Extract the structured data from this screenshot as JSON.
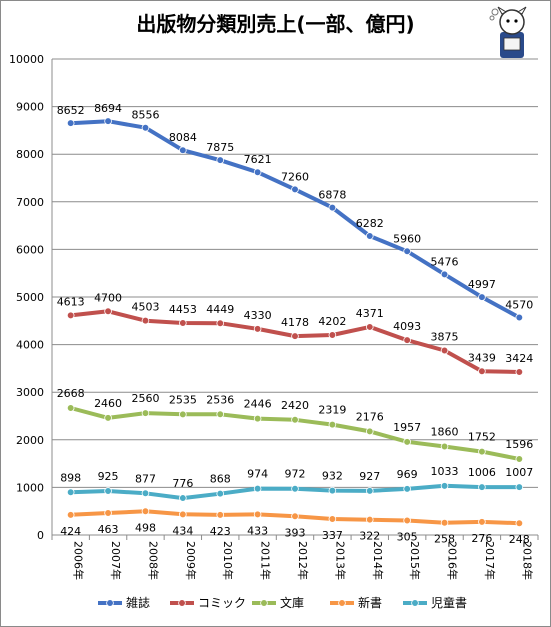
{
  "chart_data": {
    "type": "line",
    "title": "出版物分類別売上(一部、億円)",
    "xlabel": "",
    "ylabel": "",
    "categories": [
      "2006年",
      "2007年",
      "2008年",
      "2009年",
      "2010年",
      "2011年",
      "2012年",
      "2013年",
      "2014年",
      "2015年",
      "2016年",
      "2017年",
      "2018年"
    ],
    "ylim": [
      0,
      10000
    ],
    "yticks": [
      0,
      1000,
      2000,
      3000,
      4000,
      5000,
      6000,
      7000,
      8000,
      9000,
      10000
    ],
    "grid": true,
    "legend_position": "bottom",
    "series": [
      {
        "name": "雑誌",
        "color": "#4472c4",
        "values": [
          8652,
          8694,
          8556,
          8084,
          7875,
          7621,
          7260,
          6878,
          6282,
          5960,
          5476,
          4997,
          4570
        ]
      },
      {
        "name": "コミック",
        "color": "#c0504d",
        "values": [
          4613,
          4700,
          4503,
          4453,
          4449,
          4330,
          4178,
          4202,
          4371,
          4093,
          3875,
          3439,
          3424
        ]
      },
      {
        "name": "文庫",
        "color": "#9bbb59",
        "values": [
          2668,
          2460,
          2560,
          2535,
          2536,
          2446,
          2420,
          2319,
          2176,
          1957,
          1860,
          1752,
          1596
        ]
      },
      {
        "name": "新書",
        "color": "#f79646",
        "values": [
          424,
          463,
          498,
          434,
          423,
          433,
          393,
          337,
          322,
          305,
          258,
          276,
          248
        ]
      },
      {
        "name": "児童書",
        "color": "#4bacc6",
        "values": [
          898,
          925,
          877,
          776,
          868,
          974,
          972,
          932,
          927,
          969,
          1033,
          1006,
          1007
        ]
      }
    ]
  },
  "mascot": {
    "icon": "mascot-character-icon"
  }
}
